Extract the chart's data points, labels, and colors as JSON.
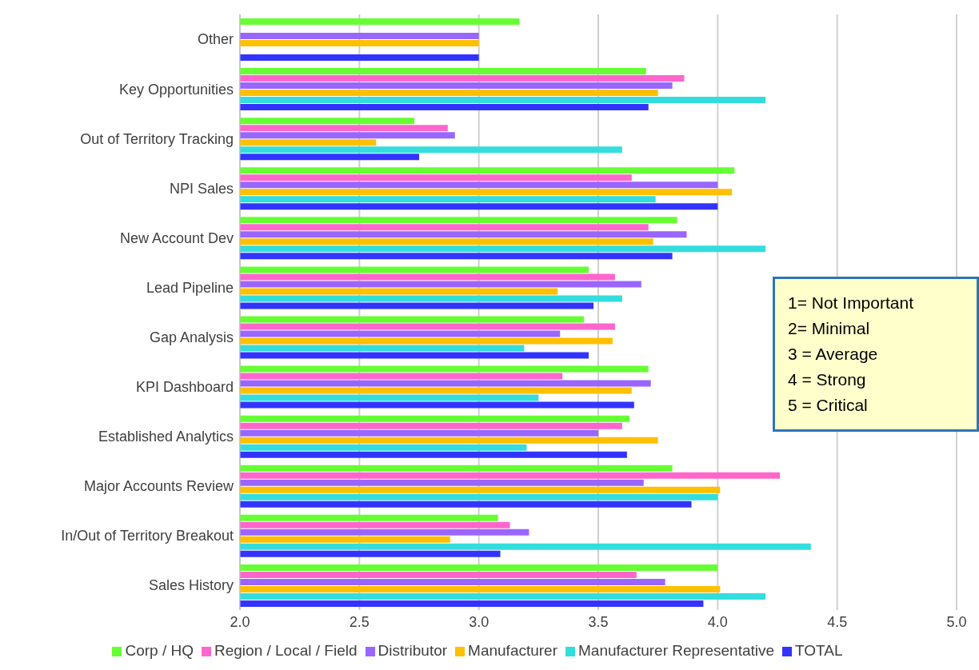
{
  "chart_data": {
    "type": "bar",
    "orientation": "horizontal",
    "categories": [
      "Other",
      "Key Opportunities",
      "Out of Territory Tracking",
      "NPI Sales",
      "New Account Dev",
      "Lead Pipeline",
      "Gap Analysis",
      "KPI Dashboard",
      "Established Analytics",
      "Major Accounts Review",
      "In/Out of Territory Breakout",
      "Sales History"
    ],
    "series": [
      {
        "name": "Corp / HQ",
        "color": "#66ff33",
        "values": [
          3.17,
          3.7,
          2.73,
          4.07,
          3.83,
          3.46,
          3.44,
          3.71,
          3.63,
          3.81,
          3.08,
          4.0
        ]
      },
      {
        "name": "Region / Local / Field",
        "color": "#ff66cc",
        "values": [
          null,
          3.86,
          2.87,
          3.64,
          3.71,
          3.57,
          3.57,
          3.35,
          3.6,
          4.26,
          3.13,
          3.66
        ]
      },
      {
        "name": "Distributor",
        "color": "#9966ff",
        "values": [
          3.0,
          3.81,
          2.9,
          4.0,
          3.87,
          3.68,
          3.34,
          3.72,
          3.5,
          3.69,
          3.21,
          3.78
        ]
      },
      {
        "name": "Manufacturer",
        "color": "#ffc000",
        "values": [
          3.0,
          3.75,
          2.57,
          4.06,
          3.73,
          3.33,
          3.56,
          3.64,
          3.75,
          4.01,
          2.88,
          4.01
        ]
      },
      {
        "name": "Manufacturer Representative",
        "color": "#33dddd",
        "values": [
          null,
          4.2,
          3.6,
          3.74,
          4.2,
          3.6,
          3.19,
          3.25,
          3.2,
          4.0,
          4.39,
          4.2
        ]
      },
      {
        "name": "TOTAL",
        "color": "#3333ff",
        "values": [
          3.0,
          3.71,
          2.75,
          4.0,
          3.81,
          3.48,
          3.46,
          3.65,
          3.62,
          3.89,
          3.09,
          3.94
        ]
      }
    ],
    "xlim": [
      2.0,
      5.0
    ],
    "xticks": [
      {
        "value": 2,
        "label": "2.0"
      },
      2.5,
      {
        "value": 3,
        "label": "3.0"
      },
      3.5,
      {
        "value": 4,
        "label": "4.0"
      },
      4.5,
      {
        "value": 5,
        "label": "5.0"
      }
    ],
    "grid": "x",
    "legend": "bottom",
    "annotations": [
      "1= Not Important",
      "2= Minimal",
      "3 = Average",
      "4 = Strong",
      "5 = Critical"
    ]
  }
}
